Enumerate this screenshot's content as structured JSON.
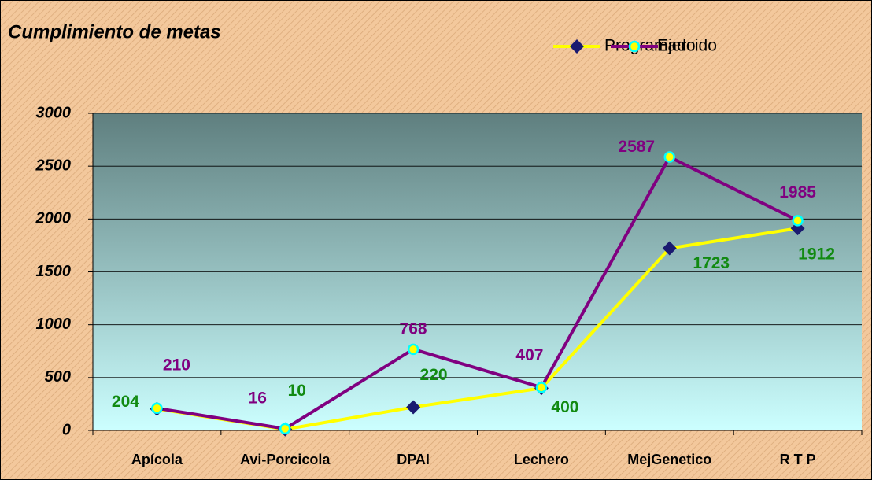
{
  "chart_data": {
    "type": "line",
    "title": "Cumplimiento de metas",
    "categories": [
      "Apícola",
      "Avi-Porcicola",
      "DPAI",
      "Lechero",
      "MejGenetico",
      "R  T  P"
    ],
    "series": [
      {
        "name": "Programado",
        "color": "#ffff00",
        "marker_color": "#1a1a70",
        "label_color": "#118a11",
        "values": [
          204,
          10,
          220,
          400,
          1723,
          1912
        ]
      },
      {
        "name": "Ejercido",
        "color": "#800080",
        "marker_color": "#00ffff",
        "label_color": "#800080",
        "values": [
          210,
          16,
          768,
          407,
          2587,
          1985
        ]
      }
    ],
    "ylim": [
      0,
      3000
    ],
    "yticks": [
      0,
      500,
      1000,
      1500,
      2000,
      2500,
      3000
    ],
    "grid": true,
    "legend": "top-right"
  }
}
